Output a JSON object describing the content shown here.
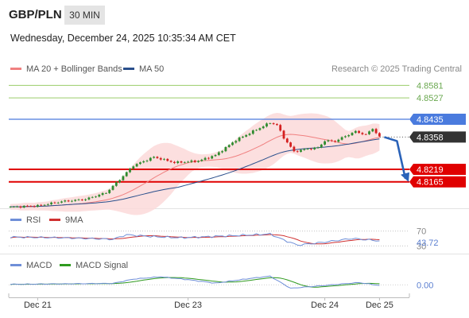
{
  "header": {
    "symbol": "GBP/PLN",
    "timeframe": "30 MIN",
    "datetime": "Wednesday, December 24, 2025 10:35:34 AM CET"
  },
  "colors": {
    "ma20": "#f08080",
    "ma50": "#2a4f8c",
    "band_fill": "#fbd9d9",
    "resistance": "#9acd6a",
    "pivot": "#4a7bde",
    "support": "#e00000",
    "last": "#333333",
    "arrow": "#2a62b8",
    "rsi": "#6f8fd8",
    "rsi_ma": "#d03030",
    "macd": "#6f8fd8",
    "macd_signal": "#2f9a1f",
    "candle_up": "#2e8b2e",
    "candle_down": "#d42020"
  },
  "price_panel": {
    "legend": {
      "ma20_label": "MA 20 + Bollinger Bands",
      "ma50_label": "MA 50",
      "credit": "Research © 2025 Trading Central"
    },
    "y_range": [
      4.8075,
      4.862
    ],
    "levels": [
      {
        "value": 4.8581,
        "label": "4.8581",
        "kind": "resistance"
      },
      {
        "value": 4.8527,
        "label": "4.8527",
        "kind": "resistance"
      },
      {
        "value": 4.8435,
        "label": "4.8435",
        "kind": "pivot"
      },
      {
        "value": 4.8358,
        "label": "4.8358",
        "kind": "last"
      },
      {
        "value": 4.8219,
        "label": "4.8219",
        "kind": "support"
      },
      {
        "value": 4.8165,
        "label": "4.8165",
        "kind": "support"
      }
    ]
  },
  "rsi_panel": {
    "legend": {
      "rsi_label": "RSI",
      "ma_label": "9MA"
    },
    "y_range": [
      20,
      80
    ],
    "levels": [
      {
        "value": 70,
        "label": "70"
      },
      {
        "value": 30,
        "label": "30"
      }
    ],
    "current": {
      "value": 43.72,
      "label": "43.72"
    }
  },
  "macd_panel": {
    "legend": {
      "macd_label": "MACD",
      "signal_label": "MACD Signal"
    },
    "y_range": [
      -0.0035,
      0.0045
    ],
    "zero_label": "0.00"
  },
  "x_axis": {
    "labels": [
      {
        "text": "Dec 21",
        "index": 8
      },
      {
        "text": "Dec 23",
        "index": 52
      },
      {
        "text": "Dec 24",
        "index": 92
      },
      {
        "text": "Dec 25",
        "index": 108
      }
    ]
  },
  "chart_data": {
    "type": "line",
    "title": "GBP/PLN 30 MIN",
    "x_labels": [
      "Dec 21",
      "Dec 23",
      "Dec 24",
      "Dec 25"
    ],
    "close_anchors": [
      [
        0,
        4.8056
      ],
      [
        8,
        4.8062
      ],
      [
        15,
        4.808
      ],
      [
        22,
        4.809
      ],
      [
        28,
        4.8118
      ],
      [
        32,
        4.8175
      ],
      [
        36,
        4.8235
      ],
      [
        42,
        4.8272
      ],
      [
        48,
        4.8248
      ],
      [
        55,
        4.8255
      ],
      [
        60,
        4.828
      ],
      [
        66,
        4.8345
      ],
      [
        72,
        4.839
      ],
      [
        76,
        4.842
      ],
      [
        78,
        4.841
      ],
      [
        80,
        4.8355
      ],
      [
        83,
        4.8295
      ],
      [
        86,
        4.8305
      ],
      [
        90,
        4.8312
      ],
      [
        92,
        4.8342
      ],
      [
        95,
        4.834
      ],
      [
        98,
        4.8362
      ],
      [
        101,
        4.8382
      ],
      [
        104,
        4.8368
      ],
      [
        106,
        4.8395
      ],
      [
        108,
        4.8358
      ]
    ],
    "rsi_anchors": [
      [
        0,
        54
      ],
      [
        15,
        52
      ],
      [
        30,
        48
      ],
      [
        34,
        60
      ],
      [
        42,
        55
      ],
      [
        50,
        52
      ],
      [
        66,
        58
      ],
      [
        76,
        62
      ],
      [
        80,
        46
      ],
      [
        84,
        32
      ],
      [
        90,
        38
      ],
      [
        100,
        50
      ],
      [
        108,
        43.72
      ]
    ],
    "macd_anchors": [
      [
        0,
        0.0002
      ],
      [
        20,
        0.0004
      ],
      [
        30,
        0.0005
      ],
      [
        36,
        0.002
      ],
      [
        44,
        0.0028
      ],
      [
        52,
        0.0018
      ],
      [
        60,
        0.0006
      ],
      [
        70,
        0.0022
      ],
      [
        76,
        0.003
      ],
      [
        82,
        -0.0012
      ],
      [
        88,
        -0.0006
      ],
      [
        96,
        0.0002
      ],
      [
        102,
        0.0008
      ],
      [
        108,
        -0.0002
      ]
    ],
    "forecast": {
      "from": 4.8358,
      "to": 4.8165
    }
  }
}
